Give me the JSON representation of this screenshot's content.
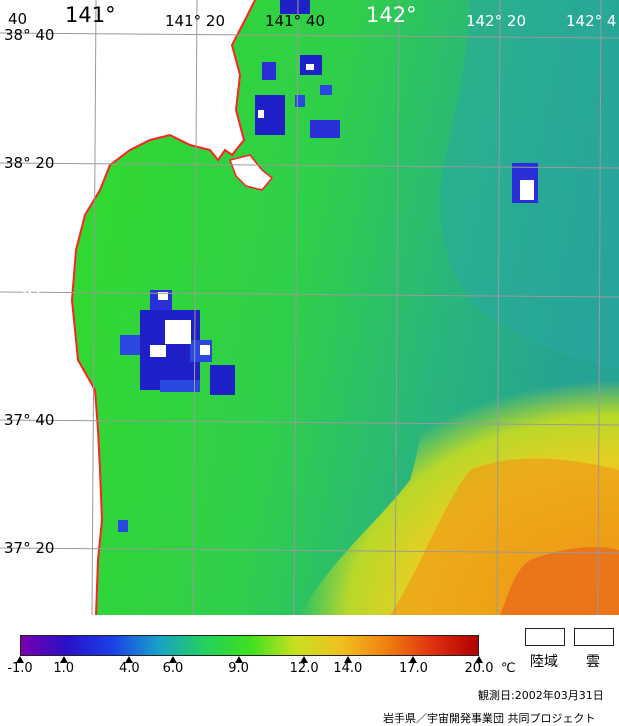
{
  "map": {
    "lon_labels_top": [
      {
        "text": "141°",
        "big": true
      },
      {
        "text": "141° 20",
        "big": false
      },
      {
        "text": "141° 40",
        "big": false
      },
      {
        "text": "142°",
        "big": true
      },
      {
        "text": "142° 20",
        "big": false
      },
      {
        "text": "142° 4",
        "big": false
      }
    ],
    "lat_labels_left": [
      {
        "text": "38° 40",
        "big": false
      },
      {
        "text": "38° 20",
        "big": false
      },
      {
        "text": "38°",
        "big": true
      },
      {
        "text": "37° 40",
        "big": false
      },
      {
        "text": "37° 20",
        "big": false
      }
    ],
    "corner_label": "40",
    "colors": {
      "land": "#ffffff",
      "coast": "#ff2020",
      "grid": "#9a9a9a",
      "sea_green": "#33dd22",
      "sea_cyan": "#2cb08c",
      "sea_yellow": "#e8d020",
      "sea_orange": "#ee8a10",
      "cloud_blue": "#2020c8"
    }
  },
  "legend": {
    "ticks": [
      {
        "label": "-1.0",
        "value": -1.0
      },
      {
        "label": "1.0",
        "value": 1.0
      },
      {
        "label": "4.0",
        "value": 4.0
      },
      {
        "label": "6.0",
        "value": 6.0
      },
      {
        "label": "9.0",
        "value": 9.0
      },
      {
        "label": "12.0",
        "value": 12.0
      },
      {
        "label": "14.0",
        "value": 14.0
      },
      {
        "label": "17.0",
        "value": 17.0
      },
      {
        "label": "20.0",
        "value": 20.0
      }
    ],
    "min": -1.0,
    "max": 20.0,
    "unit": "℃",
    "land_label": "陸域",
    "cloud_label": "雲",
    "gradient": [
      "#7a00b0",
      "#2a10c8",
      "#1a40e8",
      "#1aa0c8",
      "#22d060",
      "#3ce020",
      "#c8e020",
      "#f0c020",
      "#f08010",
      "#e03010",
      "#b00000"
    ]
  },
  "footer": {
    "observation_date": "観測日:2002年03月31日",
    "credit": "岩手県／宇宙開発事業団 共同プロジェクト"
  }
}
